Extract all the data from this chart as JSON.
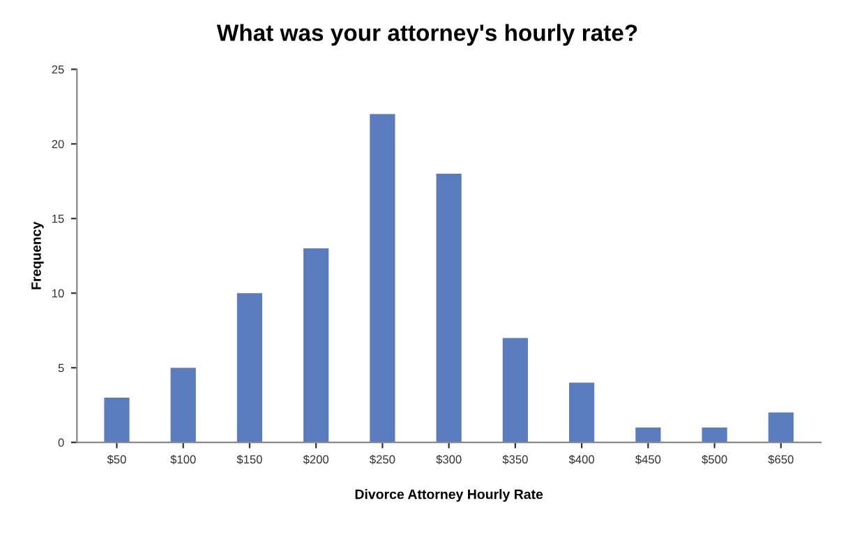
{
  "chart_data": {
    "type": "bar",
    "title": "What was your attorney's hourly rate?",
    "xlabel": "Divorce Attorney Hourly Rate",
    "ylabel": "Frequency",
    "categories": [
      "$50",
      "$100",
      "$150",
      "$200",
      "$250",
      "$300",
      "$350",
      "$400",
      "$450",
      "$500",
      "$650"
    ],
    "values": [
      3,
      5,
      10,
      13,
      22,
      18,
      7,
      4,
      1,
      1,
      2
    ],
    "color": "#5b7bbf",
    "ylim": [
      0,
      25
    ],
    "yticks": [
      0,
      5,
      10,
      15,
      20,
      25
    ],
    "grid": false,
    "legend": false
  }
}
